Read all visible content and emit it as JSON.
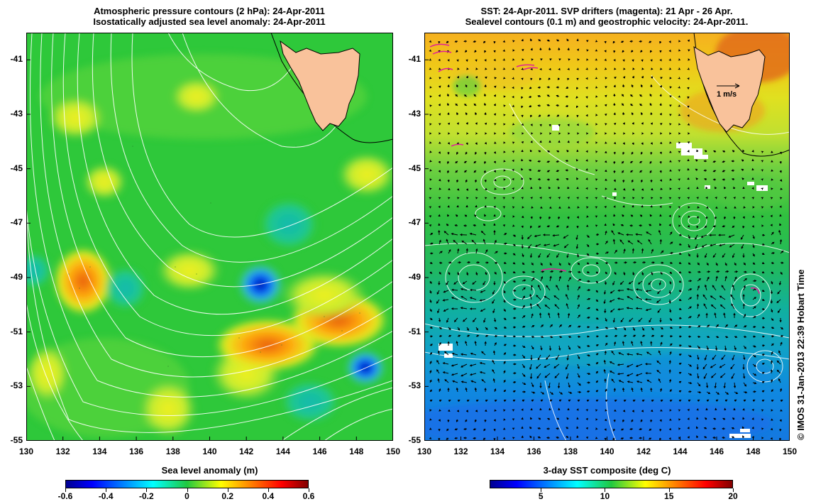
{
  "left_panel": {
    "title_line1": "Atmospheric pressure contours (2 hPa): 24-Apr-2011",
    "title_line2": "Isostatically adjusted sea level anomaly: 24-Apr-2011",
    "colorbar_title": "Sea level anomaly (m)",
    "colorbar_ticks": [
      "-0.6",
      "-0.4",
      "-0.2",
      "0",
      "0.2",
      "0.4",
      "0.6"
    ],
    "colormap": "jet",
    "range": [
      -0.6,
      0.6
    ]
  },
  "right_panel": {
    "title_line1": "SST: 24-Apr-2011. SVP drifters (magenta): 21 Apr - 26 Apr.",
    "title_line2": "Sealevel contours (0.1 m) and geostrophic velocity: 24-Apr-2011.",
    "colorbar_title": "3-day SST composite (deg C)",
    "colorbar_ticks": [
      "5",
      "10",
      "15",
      "20"
    ],
    "colormap": "jet",
    "range": [
      1,
      20
    ],
    "velocity_scale_label": "1 m/s"
  },
  "map_extent": {
    "lon": [
      130,
      150
    ],
    "lat": [
      -55,
      -40
    ]
  },
  "lat_tick_labels": [
    "-41",
    "-43",
    "-45",
    "-47",
    "-49",
    "-51",
    "-53",
    "-55"
  ],
  "lon_tick_labels": [
    "130",
    "132",
    "134",
    "136",
    "138",
    "140",
    "142",
    "144",
    "146",
    "148",
    "150"
  ],
  "credit": "© IMOS 31-Jan-2013 22:39 Hobart Time",
  "colors": {
    "land": "#f9c29b",
    "contour": "#ffffff",
    "drifter": "#e0209a",
    "arrow": "#000000"
  }
}
